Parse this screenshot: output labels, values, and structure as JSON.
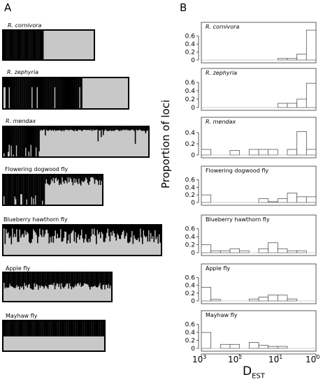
{
  "panel_a_letter": "A",
  "panel_b_letter": "B",
  "structure_labels": [
    "R. cornivora",
    "R. zephyria",
    "R. mendax",
    "Flowering dogwood fly",
    "Blueberry hawthorn fly",
    "Apple fly",
    "Mayhaw fly"
  ],
  "y_axis_label": "Proportion of loci",
  "x_axis_label_main": "D",
  "x_axis_label_sub": "EST",
  "x_ticks": [
    {
      "base": "10",
      "exp": "3"
    },
    {
      "base": "10",
      "exp": "2"
    },
    {
      "base": "10",
      "exp": "1"
    },
    {
      "base": "10",
      "exp": "0"
    }
  ],
  "colors": {
    "dark": "#000000",
    "light": "#c8c8c8",
    "hist_edge": "#555555"
  },
  "chart_data": [
    {
      "type": "bar",
      "title": "R. cornivora",
      "xscale": "log-reversed",
      "x": [
        1000,
        562,
        316,
        178,
        100,
        56.2,
        31.6,
        17.8,
        10,
        5.62,
        3.16,
        1.78
      ],
      "values": [
        0,
        0,
        0,
        0,
        0,
        0,
        0,
        0,
        0.04,
        0.04,
        0.15,
        0.75
      ],
      "ylim": [
        0,
        0.7
      ],
      "yticks": [
        0,
        0.2,
        0.4,
        0.6
      ]
    },
    {
      "type": "bar",
      "title": "R. zephyria",
      "xscale": "log-reversed",
      "x": [
        1000,
        562,
        316,
        178,
        100,
        56.2,
        31.6,
        17.8,
        10,
        5.62,
        3.16,
        1.78
      ],
      "values": [
        0,
        0,
        0,
        0,
        0,
        0,
        0,
        0,
        0.1,
        0.1,
        0.2,
        0.58
      ],
      "ylim": [
        0,
        0.7
      ],
      "yticks": [
        0,
        0.2,
        0.4,
        0.6
      ]
    },
    {
      "type": "bar",
      "title": "R. mendax",
      "xscale": "log-reversed",
      "x": [
        1000,
        562,
        316,
        178,
        100,
        56.2,
        31.6,
        17.8,
        10,
        5.62,
        3.16,
        1.78
      ],
      "values": [
        0.1,
        0,
        0,
        0.08,
        0,
        0.1,
        0.1,
        0.1,
        0,
        0.1,
        0.42,
        0.1
      ],
      "ylim": [
        0,
        0.5
      ],
      "yticks": [
        0,
        0.2,
        0.4
      ]
    },
    {
      "type": "bar",
      "title": "Flowering dogwood fly",
      "xscale": "log-reversed",
      "x": [
        1000,
        562,
        316,
        178,
        100,
        56.2,
        31.6,
        17.8,
        10,
        5.62,
        3.16,
        1.78
      ],
      "values": [
        0.2,
        0,
        0,
        0,
        0,
        0,
        0.1,
        0.02,
        0.1,
        0.25,
        0.15,
        0.15
      ],
      "ylim": [
        0,
        0.7
      ],
      "yticks": [
        0,
        0.2,
        0.4,
        0.6
      ]
    },
    {
      "type": "bar",
      "title": "Blueberry hawthorn fly",
      "xscale": "log-reversed",
      "x": [
        1000,
        562,
        316,
        178,
        100,
        56.2,
        31.6,
        17.8,
        10,
        5.62,
        3.16,
        1.78
      ],
      "values": [
        0.2,
        0.05,
        0.05,
        0.1,
        0.05,
        0,
        0.1,
        0.25,
        0.1,
        0.05,
        0.05,
        0
      ],
      "ylim": [
        0,
        0.7
      ],
      "yticks": [
        0,
        0.2,
        0.4,
        0.6
      ]
    },
    {
      "type": "bar",
      "title": "Apple fly",
      "xscale": "log-reversed",
      "x": [
        1000,
        562,
        316,
        178,
        100,
        56.2,
        31.6,
        17.8,
        10,
        5.62,
        3.16,
        1.78
      ],
      "values": [
        0.35,
        0.04,
        0,
        0,
        0,
        0.05,
        0.1,
        0.15,
        0.15,
        0.05,
        0,
        0
      ],
      "ylim": [
        0,
        0.7
      ],
      "yticks": [
        0,
        0.2,
        0.4,
        0.6
      ]
    },
    {
      "type": "bar",
      "title": "Mayhaw fly",
      "xscale": "log-reversed",
      "x": [
        1000,
        562,
        316,
        178,
        100,
        56.2,
        31.6,
        17.8,
        10,
        5.62,
        3.16,
        1.78
      ],
      "values": [
        0.4,
        0,
        0.1,
        0.1,
        0,
        0.15,
        0.08,
        0.05,
        0.05,
        0,
        0,
        0
      ],
      "ylim": [
        0,
        0.7
      ],
      "yticks": [
        0,
        0.2,
        0.4,
        0.6
      ]
    }
  ]
}
